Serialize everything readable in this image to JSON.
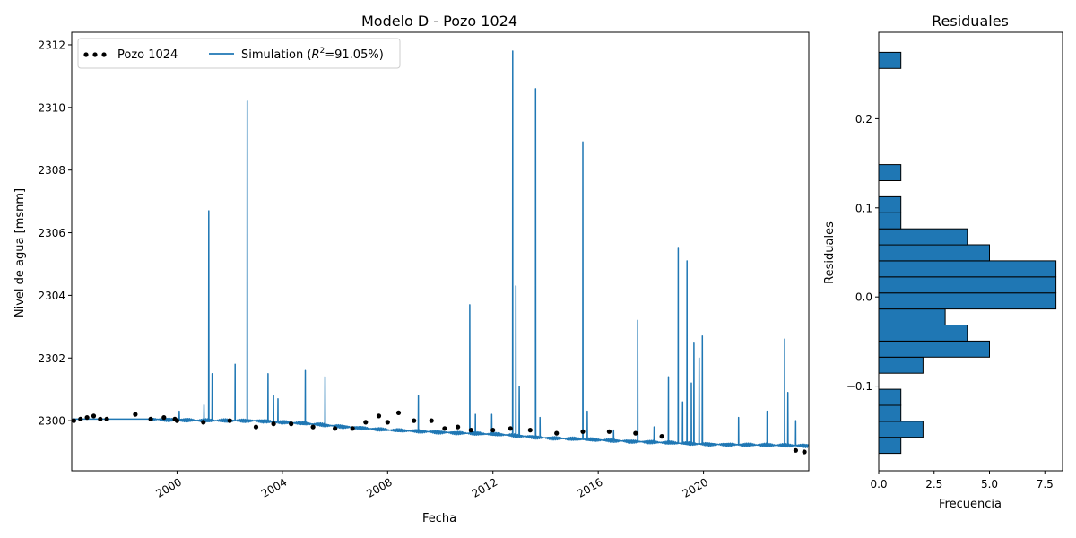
{
  "chart_data": [
    {
      "type": "line",
      "title": "Modelo D - Pozo 1024",
      "xlabel": "Fecha",
      "ylabel": "Nivel de agua [msnm]",
      "xlim": [
        "1996-01-01",
        "2023-12-31"
      ],
      "ylim": [
        2298.4,
        2312.4
      ],
      "xticks": [
        "2000",
        "2004",
        "2008",
        "2012",
        "2016",
        "2020"
      ],
      "yticks": [
        2300,
        2302,
        2304,
        2306,
        2308,
        2310,
        2312
      ],
      "grid": false,
      "legend_position": "top-left",
      "legend": {
        "observed": "Pozo 1024",
        "simulation_prefix": "Simulation (",
        "simulation_r": "R",
        "simulation_sup": "2",
        "simulation_suffix": "=91.05%)"
      },
      "colors": {
        "simulation": "#1f77b4",
        "observed": "#000000"
      },
      "simulation": {
        "baseline": [
          {
            "x": "1996-01-01",
            "y": 2300.05
          },
          {
            "x": "1999-01-01",
            "y": 2300.05
          },
          {
            "x": "2001-01-01",
            "y": 2300.0
          },
          {
            "x": "2003-01-01",
            "y": 2300.0
          },
          {
            "x": "2005-01-01",
            "y": 2299.9
          },
          {
            "x": "2008-01-01",
            "y": 2299.7
          },
          {
            "x": "2012-06-01",
            "y": 2299.55
          },
          {
            "x": "2014-01-01",
            "y": 2299.45
          },
          {
            "x": "2017-01-01",
            "y": 2299.35
          },
          {
            "x": "2020-01-01",
            "y": 2299.25
          },
          {
            "x": "2023-12-31",
            "y": 2299.2
          }
        ],
        "peaks": [
          {
            "x": "2000-02-01",
            "y": 2300.3
          },
          {
            "x": "2001-01-10",
            "y": 2300.5
          },
          {
            "x": "2001-03-15",
            "y": 2306.7
          },
          {
            "x": "2001-05-01",
            "y": 2301.5
          },
          {
            "x": "2002-03-15",
            "y": 2301.8
          },
          {
            "x": "2002-09-01",
            "y": 2310.2
          },
          {
            "x": "2003-06-15",
            "y": 2301.5
          },
          {
            "x": "2003-09-01",
            "y": 2300.8
          },
          {
            "x": "2003-11-01",
            "y": 2300.7
          },
          {
            "x": "2004-11-15",
            "y": 2301.6
          },
          {
            "x": "2005-08-15",
            "y": 2301.4
          },
          {
            "x": "2009-03-01",
            "y": 2300.8
          },
          {
            "x": "2011-02-15",
            "y": 2303.7
          },
          {
            "x": "2011-05-01",
            "y": 2300.2
          },
          {
            "x": "2011-12-15",
            "y": 2300.2
          },
          {
            "x": "2012-10-01",
            "y": 2311.8
          },
          {
            "x": "2012-11-15",
            "y": 2304.3
          },
          {
            "x": "2013-01-01",
            "y": 2301.1
          },
          {
            "x": "2013-08-15",
            "y": 2310.6
          },
          {
            "x": "2013-10-15",
            "y": 2300.1
          },
          {
            "x": "2015-06-01",
            "y": 2308.9
          },
          {
            "x": "2015-08-01",
            "y": 2300.3
          },
          {
            "x": "2016-08-01",
            "y": 2299.7
          },
          {
            "x": "2017-07-01",
            "y": 2303.2
          },
          {
            "x": "2018-02-15",
            "y": 2299.8
          },
          {
            "x": "2018-09-01",
            "y": 2301.4
          },
          {
            "x": "2019-01-15",
            "y": 2305.5
          },
          {
            "x": "2019-03-15",
            "y": 2300.6
          },
          {
            "x": "2019-05-15",
            "y": 2305.1
          },
          {
            "x": "2019-07-15",
            "y": 2301.2
          },
          {
            "x": "2019-08-20",
            "y": 2302.5
          },
          {
            "x": "2019-11-01",
            "y": 2302.0
          },
          {
            "x": "2019-12-15",
            "y": 2302.7
          },
          {
            "x": "2021-05-01",
            "y": 2300.1
          },
          {
            "x": "2022-06-01",
            "y": 2300.3
          },
          {
            "x": "2023-02-01",
            "y": 2302.6
          },
          {
            "x": "2023-03-15",
            "y": 2300.9
          },
          {
            "x": "2023-07-01",
            "y": 2300.0
          }
        ]
      },
      "observed_points": [
        {
          "x": "1996-02-01",
          "y": 2300.0
        },
        {
          "x": "1996-05-01",
          "y": 2300.05
        },
        {
          "x": "1996-08-01",
          "y": 2300.1
        },
        {
          "x": "1996-11-01",
          "y": 2300.15
        },
        {
          "x": "1997-02-01",
          "y": 2300.05
        },
        {
          "x": "1997-05-01",
          "y": 2300.05
        },
        {
          "x": "1998-06-01",
          "y": 2300.2
        },
        {
          "x": "1999-01-01",
          "y": 2300.05
        },
        {
          "x": "1999-07-01",
          "y": 2300.1
        },
        {
          "x": "1999-12-01",
          "y": 2300.05
        },
        {
          "x": "2000-01-01",
          "y": 2300.0
        },
        {
          "x": "2001-01-01",
          "y": 2299.95
        },
        {
          "x": "2002-01-01",
          "y": 2300.0
        },
        {
          "x": "2003-01-01",
          "y": 2299.8
        },
        {
          "x": "2003-09-01",
          "y": 2299.9
        },
        {
          "x": "2004-05-01",
          "y": 2299.9
        },
        {
          "x": "2005-03-01",
          "y": 2299.8
        },
        {
          "x": "2006-01-01",
          "y": 2299.75
        },
        {
          "x": "2006-09-01",
          "y": 2299.75
        },
        {
          "x": "2007-03-01",
          "y": 2299.95
        },
        {
          "x": "2007-09-01",
          "y": 2300.15
        },
        {
          "x": "2008-01-01",
          "y": 2299.95
        },
        {
          "x": "2008-06-01",
          "y": 2300.25
        },
        {
          "x": "2009-01-01",
          "y": 2300.0
        },
        {
          "x": "2009-09-01",
          "y": 2300.0
        },
        {
          "x": "2010-03-01",
          "y": 2299.75
        },
        {
          "x": "2010-09-01",
          "y": 2299.8
        },
        {
          "x": "2011-03-01",
          "y": 2299.7
        },
        {
          "x": "2012-01-01",
          "y": 2299.7
        },
        {
          "x": "2012-09-01",
          "y": 2299.75
        },
        {
          "x": "2013-06-01",
          "y": 2299.7
        },
        {
          "x": "2014-06-01",
          "y": 2299.6
        },
        {
          "x": "2015-06-01",
          "y": 2299.65
        },
        {
          "x": "2016-06-01",
          "y": 2299.65
        },
        {
          "x": "2017-06-01",
          "y": 2299.6
        },
        {
          "x": "2018-06-01",
          "y": 2299.5
        },
        {
          "x": "2023-07-01",
          "y": 2299.05
        },
        {
          "x": "2023-11-01",
          "y": 2299.0
        }
      ]
    },
    {
      "type": "bar",
      "orientation": "horizontal",
      "title": "Residuales",
      "xlabel": "Frecuencia",
      "ylabel": "Residuales",
      "xlim": [
        0,
        8.3
      ],
      "ylim": [
        -0.195,
        0.297
      ],
      "xticks": [
        "0.0",
        "2.5",
        "5.0",
        "7.5"
      ],
      "xtick_values": [
        0,
        2.5,
        5,
        7.5
      ],
      "yticks": [
        "−0.1",
        "0.0",
        "0.1",
        "0.2"
      ],
      "ytick_values": [
        -0.1,
        0,
        0.1,
        0.2
      ],
      "grid": false,
      "colors": {
        "bar": "#1f77b4",
        "edge": "#000000"
      },
      "bins": [
        {
          "low": -0.1755,
          "high": -0.1575,
          "count": 1
        },
        {
          "low": -0.1575,
          "high": -0.1395,
          "count": 2
        },
        {
          "low": -0.1395,
          "high": -0.1215,
          "count": 1
        },
        {
          "low": -0.1215,
          "high": -0.1035,
          "count": 1
        },
        {
          "low": -0.0855,
          "high": -0.0675,
          "count": 2
        },
        {
          "low": -0.0675,
          "high": -0.0495,
          "count": 5
        },
        {
          "low": -0.0495,
          "high": -0.0315,
          "count": 4
        },
        {
          "low": -0.0315,
          "high": -0.0135,
          "count": 3
        },
        {
          "low": -0.0135,
          "high": 0.0045,
          "count": 8
        },
        {
          "low": 0.0045,
          "high": 0.0225,
          "count": 8
        },
        {
          "low": 0.0225,
          "high": 0.0405,
          "count": 8
        },
        {
          "low": 0.0405,
          "high": 0.0585,
          "count": 5
        },
        {
          "low": 0.0585,
          "high": 0.0765,
          "count": 4
        },
        {
          "low": 0.0765,
          "high": 0.0945,
          "count": 1
        },
        {
          "low": 0.0945,
          "high": 0.1125,
          "count": 1
        },
        {
          "low": 0.1305,
          "high": 0.1485,
          "count": 1
        },
        {
          "low": 0.2565,
          "high": 0.2745,
          "count": 1
        }
      ]
    }
  ]
}
